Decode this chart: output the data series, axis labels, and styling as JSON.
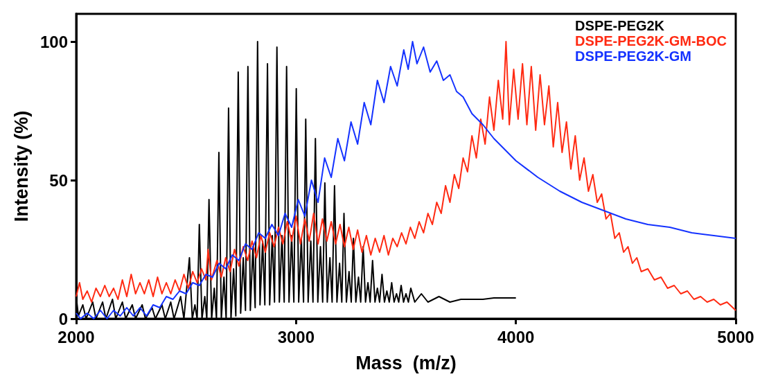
{
  "chart_data": {
    "type": "line",
    "xlabel": "Mass  (m/z)",
    "ylabel": "Intensity (%)",
    "xlim": [
      2000,
      5000
    ],
    "xticks": [
      2000,
      3000,
      4000,
      5000
    ],
    "ylim": [
      0,
      110
    ],
    "yticks": [
      0,
      50,
      100
    ],
    "grid": false,
    "legend": "top right",
    "marker": "none",
    "line_style": "solid",
    "series": [
      {
        "name": "DSPE-PEG2K",
        "color": "#000000",
        "x": [
          2000,
          2010,
          2030,
          2045,
          2075,
          2090,
          2120,
          2135,
          2165,
          2180,
          2210,
          2225,
          2255,
          2270,
          2300,
          2315,
          2345,
          2360,
          2390,
          2405,
          2430,
          2445,
          2475,
          2490,
          2515,
          2528,
          2540,
          2550,
          2560,
          2572,
          2585,
          2594,
          2604,
          2616,
          2628,
          2638,
          2649,
          2660,
          2672,
          2682,
          2693,
          2704,
          2716,
          2726,
          2737,
          2748,
          2760,
          2770,
          2781,
          2792,
          2804,
          2814,
          2825,
          2836,
          2848,
          2858,
          2870,
          2880,
          2892,
          2902,
          2913,
          2924,
          2936,
          2946,
          2957,
          2968,
          2980,
          2990,
          3001,
          3012,
          3024,
          3034,
          3044,
          3055,
          3067,
          3077,
          3088,
          3099,
          3111,
          3121,
          3131,
          3142,
          3154,
          3164,
          3175,
          3186,
          3198,
          3208,
          3218,
          3229,
          3241,
          3251,
          3261,
          3272,
          3284,
          3294,
          3305,
          3316,
          3327,
          3337,
          3348,
          3359,
          3370,
          3380,
          3391,
          3402,
          3413,
          3424,
          3435,
          3446,
          3457,
          3467,
          3478,
          3489,
          3500,
          3511,
          3522,
          3540,
          3570,
          3600,
          3650,
          3700,
          3750,
          3800,
          3850,
          3900,
          3950,
          4000
        ],
        "values": [
          8,
          1,
          5,
          0,
          6,
          0,
          6,
          0,
          7,
          0,
          6,
          0,
          5,
          0,
          5,
          0,
          4,
          0,
          5,
          0,
          6,
          0,
          8,
          0,
          22,
          0,
          5,
          0,
          34,
          0,
          8,
          0,
          43,
          0,
          11,
          0,
          60,
          0,
          15,
          0,
          76,
          0,
          18,
          1,
          89,
          2,
          22,
          3,
          91,
          3,
          26,
          4,
          100,
          5,
          28,
          5,
          92,
          5,
          30,
          6,
          98,
          6,
          30,
          6,
          91,
          6,
          30,
          6,
          83,
          6,
          29,
          6,
          72,
          6,
          28,
          6,
          65,
          6,
          26,
          6,
          49,
          6,
          22,
          6,
          48,
          6,
          20,
          6,
          38,
          6,
          17,
          6,
          29,
          6,
          15,
          6,
          26,
          6,
          13,
          6,
          21,
          6,
          11,
          6,
          16,
          6,
          10,
          6,
          13,
          6,
          9,
          6,
          12,
          6,
          9,
          6,
          11,
          6,
          9,
          6,
          8,
          6,
          7,
          7,
          7,
          7.5,
          7.5,
          7.5
        ]
      },
      {
        "name": "DSPE-PEG2K-GM-BOC",
        "color": "#ff2a12",
        "x": [
          2000,
          2015,
          2030,
          2050,
          2070,
          2090,
          2110,
          2130,
          2150,
          2170,
          2190,
          2210,
          2230,
          2250,
          2270,
          2290,
          2310,
          2330,
          2350,
          2370,
          2390,
          2410,
          2430,
          2450,
          2470,
          2490,
          2510,
          2530,
          2550,
          2570,
          2590,
          2600,
          2615,
          2640,
          2660,
          2680,
          2700,
          2720,
          2740,
          2760,
          2780,
          2800,
          2820,
          2840,
          2860,
          2880,
          2900,
          2920,
          2940,
          2960,
          2980,
          3000,
          3020,
          3040,
          3060,
          3080,
          3100,
          3120,
          3140,
          3160,
          3180,
          3200,
          3220,
          3240,
          3260,
          3280,
          3300,
          3320,
          3340,
          3360,
          3380,
          3400,
          3420,
          3440,
          3460,
          3480,
          3500,
          3520,
          3540,
          3560,
          3580,
          3600,
          3620,
          3640,
          3660,
          3680,
          3700,
          3720,
          3740,
          3760,
          3780,
          3800,
          3820,
          3840,
          3860,
          3880,
          3900,
          3920,
          3940,
          3955,
          3970,
          3990,
          4010,
          4030,
          4050,
          4070,
          4090,
          4110,
          4130,
          4150,
          4170,
          4190,
          4210,
          4230,
          4250,
          4270,
          4290,
          4310,
          4330,
          4350,
          4370,
          4390,
          4410,
          4430,
          4450,
          4470,
          4490,
          4510,
          4530,
          4550,
          4570,
          4600,
          4630,
          4660,
          4690,
          4720,
          4750,
          4780,
          4810,
          4840,
          4870,
          4900,
          4930,
          4960,
          5000
        ],
        "values": [
          8,
          13,
          7,
          10,
          6,
          11,
          8,
          12,
          8,
          11,
          7,
          14,
          8,
          16,
          9,
          13,
          9,
          14,
          8,
          15,
          9,
          13,
          9,
          14,
          10,
          16,
          11,
          17,
          13,
          18,
          14,
          25,
          14,
          21,
          15,
          22,
          17,
          25,
          19,
          26,
          21,
          28,
          22,
          30,
          24,
          31,
          26,
          33,
          27,
          35,
          28,
          37,
          27,
          36,
          28,
          38,
          27,
          36,
          28,
          35,
          27,
          34,
          26,
          33,
          25,
          32,
          24,
          30,
          23,
          29,
          24,
          30,
          23,
          29,
          26,
          31,
          27,
          33,
          29,
          35,
          31,
          38,
          34,
          42,
          38,
          48,
          42,
          52,
          47,
          58,
          53,
          66,
          58,
          72,
          63,
          80,
          68,
          86,
          72,
          100,
          70,
          90,
          72,
          92,
          70,
          91,
          68,
          88,
          70,
          84,
          62,
          78,
          60,
          71,
          54,
          66,
          50,
          58,
          46,
          52,
          42,
          45,
          36,
          38,
          29,
          31,
          24,
          26,
          20,
          22,
          17,
          18,
          14,
          15,
          11,
          12,
          9,
          10,
          7,
          8,
          6,
          7,
          5,
          6,
          3
        ]
      },
      {
        "name": "DSPE-PEG2K-GM",
        "color": "#1432ff",
        "x": [
          2000,
          2020,
          2050,
          2080,
          2110,
          2140,
          2170,
          2200,
          2230,
          2260,
          2290,
          2320,
          2350,
          2380,
          2410,
          2440,
          2470,
          2500,
          2530,
          2560,
          2590,
          2620,
          2650,
          2680,
          2710,
          2740,
          2770,
          2800,
          2830,
          2860,
          2890,
          2920,
          2950,
          2980,
          3010,
          3040,
          3070,
          3100,
          3130,
          3160,
          3190,
          3220,
          3250,
          3280,
          3310,
          3340,
          3370,
          3400,
          3430,
          3460,
          3490,
          3510,
          3530,
          3550,
          3580,
          3610,
          3640,
          3670,
          3700,
          3730,
          3760,
          3800,
          3850,
          3900,
          3950,
          4000,
          4100,
          4200,
          4300,
          4400,
          4500,
          4600,
          4700,
          4800,
          4900,
          5000
        ],
        "values": [
          2,
          0,
          2,
          0,
          3,
          0,
          3,
          1,
          4,
          1,
          4,
          1,
          5,
          4,
          8,
          7,
          10,
          9,
          13,
          12,
          16,
          15,
          20,
          18,
          23,
          21,
          27,
          25,
          31,
          29,
          34,
          30,
          38,
          33,
          43,
          37,
          50,
          42,
          58,
          51,
          65,
          57,
          71,
          63,
          78,
          70,
          86,
          78,
          91,
          84,
          97,
          90,
          100,
          92,
          98,
          89,
          93,
          86,
          88,
          82,
          80,
          74,
          70,
          65,
          61,
          57,
          51,
          46,
          42,
          39,
          36,
          34,
          33,
          31,
          30,
          29
        ]
      }
    ]
  }
}
